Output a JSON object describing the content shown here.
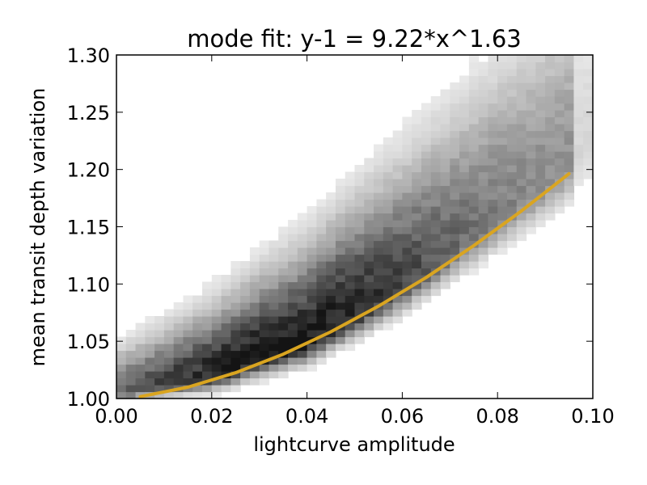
{
  "chart_data": {
    "type": "heatmap",
    "title": "mode fit: y-1 = 9.22*x^1.63",
    "xlabel": "lightcurve amplitude",
    "ylabel": "mean transit depth variation",
    "xlim": [
      0.0,
      0.1
    ],
    "ylim": [
      1.0,
      1.3
    ],
    "xticks": [
      "0.00",
      "0.02",
      "0.04",
      "0.06",
      "0.08",
      "0.10"
    ],
    "yticks": [
      "1.00",
      "1.05",
      "1.10",
      "1.15",
      "1.20",
      "1.25",
      "1.30"
    ],
    "grid": false,
    "colormap": "gray_r",
    "heatmap": {
      "x_bins": 50,
      "y_bins": 50,
      "density_ridge": {
        "x": [
          0.0,
          0.02,
          0.04,
          0.06,
          0.08,
          0.1
        ],
        "y": [
          1.005,
          1.02,
          1.05,
          1.1,
          1.16,
          1.22
        ]
      }
    },
    "series": [
      {
        "name": "",
        "kind": "line",
        "color": "#DAA520",
        "x": [
          0.005,
          0.015,
          0.025,
          0.035,
          0.045,
          0.055,
          0.065,
          0.075,
          0.085,
          0.095
        ],
        "y": [
          1.0016,
          1.0099,
          1.0225,
          1.0387,
          1.0582,
          1.0806,
          1.1057,
          1.1335,
          1.1637,
          1.1963
        ]
      }
    ]
  }
}
